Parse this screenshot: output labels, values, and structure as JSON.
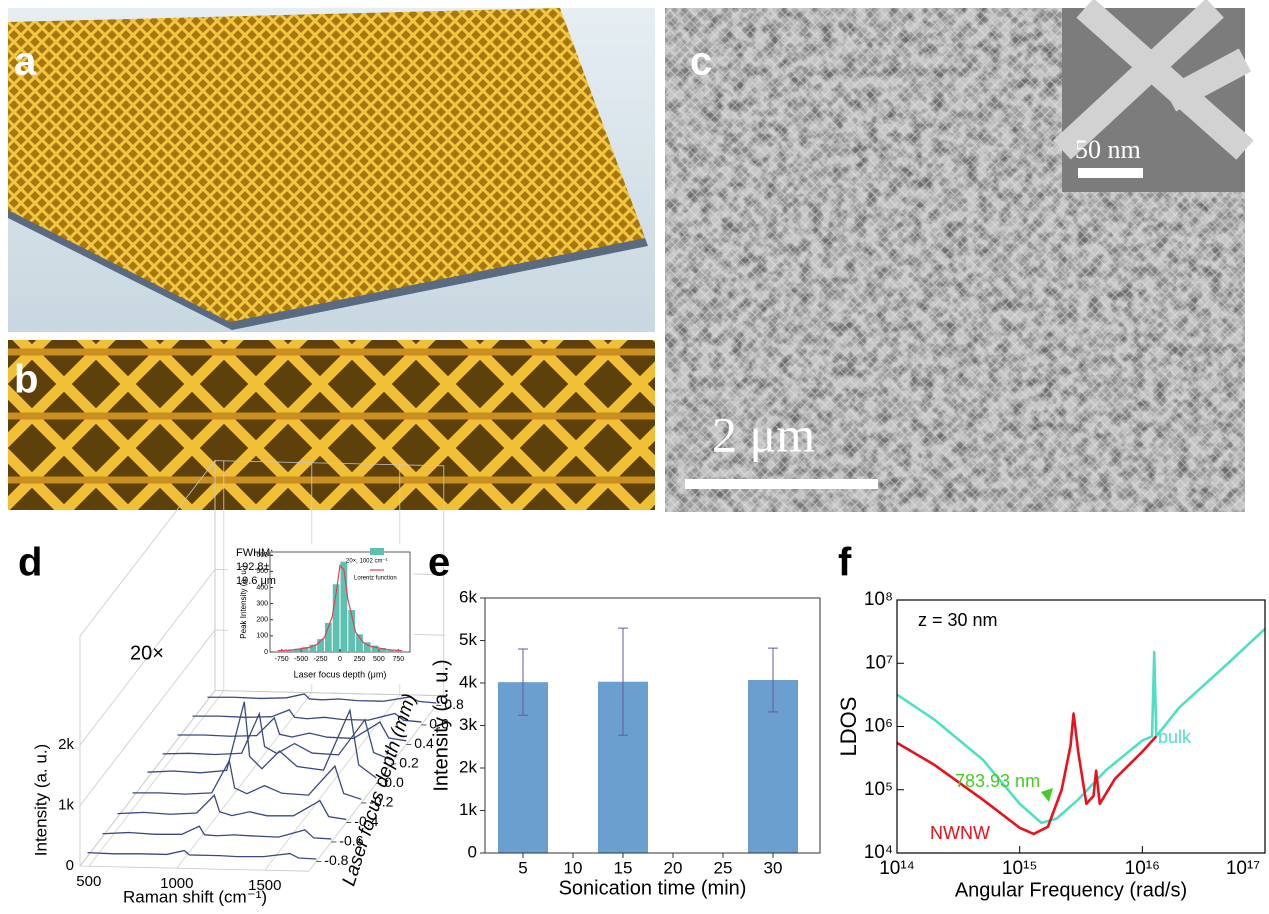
{
  "images": [
    {
      "label": "a"
    },
    {
      "label": "b"
    },
    {
      "label": "c",
      "scale_bar": "2 μm",
      "inset_scale_bar": "50 nm"
    }
  ],
  "chart_data": [
    {
      "type": "waterfall3d",
      "panel_label": "d",
      "annotation": "20×",
      "xlabel": "Raman shift (cm⁻¹)",
      "ylabel": "Intensity (a. u.)",
      "zlabel": "Laser focus depth (mm)",
      "color": "#3b4a7d",
      "xlim": [
        450,
        1750
      ],
      "xticks": [
        500,
        1000,
        1500
      ],
      "ylim": [
        0,
        2000
      ],
      "yticks": [
        0,
        {
          "value": 1000,
          "label": "1k"
        },
        {
          "value": 2000,
          "label": "2k"
        }
      ],
      "zlim": [
        -0.9,
        0.9
      ],
      "zticks": [
        -0.8,
        -0.6,
        -0.4,
        -0.2,
        {
          "value": 0,
          "label": "0.0"
        },
        0.2,
        0.4,
        0.6,
        0.8
      ],
      "x": [
        450,
        600,
        750,
        900,
        1000,
        1030,
        1100,
        1200,
        1300,
        1450,
        1600,
        1650,
        1750
      ],
      "series": [
        {
          "depth": 0.8,
          "values": [
            50,
            60,
            50,
            70,
            140,
            60,
            50,
            70,
            50,
            50,
            130,
            60,
            40
          ]
        },
        {
          "depth": 0.6,
          "values": [
            60,
            70,
            60,
            80,
            200,
            80,
            60,
            90,
            60,
            60,
            180,
            70,
            50
          ]
        },
        {
          "depth": 0.4,
          "values": [
            70,
            80,
            70,
            90,
            390,
            120,
            80,
            150,
            90,
            80,
            360,
            100,
            60
          ]
        },
        {
          "depth": 0.2,
          "values": [
            80,
            100,
            90,
            120,
            780,
            240,
            130,
            300,
            150,
            130,
            720,
            180,
            70
          ]
        },
        {
          "depth": 0,
          "values": [
            100,
            130,
            110,
            160,
            1300,
            400,
            200,
            500,
            250,
            200,
            1200,
            300,
            90
          ]
        },
        {
          "depth": -0.2,
          "values": [
            80,
            90,
            80,
            110,
            650,
            200,
            110,
            250,
            130,
            110,
            600,
            150,
            60
          ]
        },
        {
          "depth": -0.4,
          "values": [
            60,
            90,
            70,
            100,
            400,
            130,
            70,
            140,
            80,
            90,
            350,
            90,
            50
          ]
        },
        {
          "depth": -0.6,
          "values": [
            50,
            80,
            60,
            70,
            210,
            70,
            60,
            80,
            70,
            60,
            190,
            60,
            50
          ]
        },
        {
          "depth": -0.8,
          "values": [
            60,
            50,
            60,
            60,
            130,
            60,
            60,
            60,
            50,
            60,
            120,
            50,
            40
          ]
        }
      ]
    },
    {
      "type": "histogram",
      "annotation_lines": [
        "FWHM:",
        "192.8±",
        "19.6 μm"
      ],
      "xlabel": "Laser focus depth (μm)",
      "ylabel": "Peak Intensity (a. u.)",
      "xlim": [
        -900,
        900
      ],
      "xticks": [
        -750,
        -500,
        -250,
        0,
        250,
        500,
        750
      ],
      "ylim": [
        0,
        620
      ],
      "yticks": [
        0,
        100,
        200,
        300,
        400,
        500,
        600
      ],
      "bins": [
        -800,
        -700,
        -600,
        -500,
        -400,
        -300,
        -200,
        -100,
        0,
        100,
        200,
        300,
        400,
        500,
        600,
        700,
        800
      ],
      "series": [
        {
          "name": "20×, 1002 cm⁻¹",
          "color": "#5cc1b0",
          "values": [
            10,
            15,
            20,
            30,
            45,
            80,
            180,
            420,
            560,
            260,
            110,
            60,
            40,
            25,
            15,
            10
          ]
        },
        {
          "name": "Lorentz function",
          "color": "#e0405a",
          "x": [
            -800,
            -600,
            -400,
            -300,
            -200,
            -100,
            -50,
            0,
            50,
            100,
            200,
            300,
            400,
            600,
            800
          ],
          "values": [
            8,
            13,
            28,
            46,
            90,
            219,
            366,
            537,
            510,
            331,
            124,
            59,
            34,
            15,
            8
          ]
        }
      ]
    },
    {
      "type": "bar",
      "panel_label": "e",
      "xlabel": "Sonication time (min)",
      "ylabel": "Intensity (a. u.)",
      "color": "#6a9fd0",
      "error_color": "#6a5a9e",
      "x": [
        5,
        15,
        30
      ],
      "values": [
        4020,
        4030,
        4070
      ],
      "errors": [
        780,
        1260,
        750
      ],
      "xlim": [
        1.2,
        34.7
      ],
      "xticks": [
        5,
        10,
        15,
        20,
        25,
        30
      ],
      "ylim": [
        0,
        6000
      ],
      "yticks": [
        0,
        {
          "value": 1000,
          "label": "1k"
        },
        {
          "value": 2000,
          "label": "2k"
        },
        {
          "value": 3000,
          "label": "3k"
        },
        {
          "value": 4000,
          "label": "4k"
        },
        {
          "value": 5000,
          "label": "5k"
        },
        {
          "value": 6000,
          "label": "6k"
        }
      ]
    },
    {
      "type": "line",
      "panel_label": "f",
      "log_x": true,
      "log_y": true,
      "xlabel": "Angular Frequency (rad/s)",
      "ylabel": "LDOS",
      "xlim": [
        100000000000000.0,
        1e+17
      ],
      "xticks": [
        {
          "value": 100000000000000.0,
          "label": "10¹⁴"
        },
        {
          "value": 1000000000000000.0,
          "label": "10¹⁵"
        },
        {
          "value": 1e+16,
          "label": "10¹⁶"
        },
        {
          "value": 1e+17,
          "label": "10¹⁷"
        }
      ],
      "ylim": [
        10000.0,
        100000000.0
      ],
      "yticks": [
        {
          "value": 10000.0,
          "label": "10⁴"
        },
        {
          "value": 100000.0,
          "label": "10⁵"
        },
        {
          "value": 1000000.0,
          "label": "10⁶"
        },
        {
          "value": 10000000.0,
          "label": "10⁷"
        },
        {
          "value": 100000000.0,
          "label": "10⁸"
        }
      ],
      "annotations": [
        {
          "text": "z = 30 nm",
          "color": "#000000"
        },
        {
          "text": "783.93 nm",
          "color": "#44cc22"
        }
      ],
      "series": [
        {
          "name": "bulk",
          "color": "#4fe0c4",
          "x": [
            100000000000000.0,
            200000000000000.0,
            500000000000000.0,
            1000000000000000.0,
            1500000000000000.0,
            2000000000000000.0,
            3000000000000000.0,
            5000000000000000.0,
            1e+16,
            1.2e+16,
            1.25e+16,
            1.3e+16,
            2e+16,
            5e+16,
            1e+17
          ],
          "values": [
            3200000.0,
            1300000.0,
            300000.0,
            60000.0,
            30000.0,
            35000.0,
            70000.0,
            200000.0,
            600000.0,
            700000.0,
            15000000.0,
            700000.0,
            2000000.0,
            10000000.0,
            35000000.0
          ]
        },
        {
          "name": "NWNW",
          "color": "#e8121e",
          "x": [
            100000000000000.0,
            200000000000000.0,
            500000000000000.0,
            1000000000000000.0,
            1300000000000000.0,
            1700000000000000.0,
            2200000000000000.0,
            2600000000000000.0,
            2750000000000000.0,
            3000000000000000.0,
            3500000000000000.0,
            4000000000000000.0,
            4200000000000000.0,
            4500000000000000.0,
            6000000000000000.0,
            1e+16,
            1.3e+16
          ],
          "values": [
            550000.0,
            250000.0,
            70000.0,
            25000.0,
            20000.0,
            26000.0,
            100000.0,
            500000.0,
            1600000.0,
            400000.0,
            60000.0,
            80000.0,
            200000.0,
            60000.0,
            150000.0,
            400000.0,
            700000.0
          ]
        }
      ]
    }
  ]
}
